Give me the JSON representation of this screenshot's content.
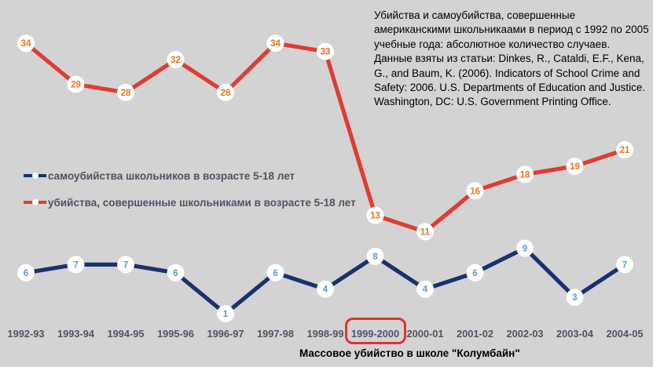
{
  "background": "#d3d3d3",
  "colors": {
    "axis_text": "#4d5562",
    "note_text": "#000000",
    "caption_text": "#000000",
    "highlight_box": "#e0352b",
    "marker_fill": "#ffffff"
  },
  "source_note": "Убийства и самоубийства, совершенные американскими школьникаами в период с 1992 по 2005 учебные года: абсолютное количество случаев. Данные взяты из статьи: Dinkes, R., Cataldi, E.F., Kena, G., and Baum, K. (2006). Indicators of School Crime and Safety: 2006. U.S. Departments of Education and Justice. Washington, DC: U.S. Government Printing Office.",
  "legend": [
    {
      "id": "suicides",
      "label": "самоубийства  школьников в возрасте 5-18 лет",
      "color": "#16336e"
    },
    {
      "id": "murders",
      "label": "убийства, совершенные школьниками в возрасте 5-18 лет",
      "color": "#e03c33"
    }
  ],
  "caption": "Массовое убийство в школе \"Колумбайн\"",
  "highlighted_category": "1999-2000",
  "chart_data": {
    "type": "line",
    "categories": [
      "1992-93",
      "1993-94",
      "1994-95",
      "1995-96",
      "1996-97",
      "1997-98",
      "1998-99",
      "1999-2000",
      "2000-01",
      "2001-02",
      "2002-03",
      "2003-04",
      "2004-05"
    ],
    "series": [
      {
        "id": "murders",
        "name": "убийства, совершенные школьниками в возрасте 5-18 лет",
        "values": [
          34,
          29,
          28,
          32,
          28,
          34,
          33,
          13,
          11,
          16,
          18,
          19,
          21
        ],
        "line_color": "#e03c33",
        "label_color": "#e4761f"
      },
      {
        "id": "suicides",
        "name": "самоубийства школьников в возрасте 5-18 лет",
        "values": [
          6,
          7,
          7,
          6,
          1,
          6,
          4,
          8,
          4,
          6,
          9,
          3,
          7
        ],
        "line_color": "#16336e",
        "label_color": "#5b9bd5"
      }
    ],
    "title": "",
    "xlabel": "",
    "ylabel": "",
    "ylim": [
      0,
      39
    ],
    "grid": false,
    "legend_position": "middle-left",
    "data_labels": "values shown inside white circular markers on every point",
    "annotation": "1999-2000 tick label outlined with red rounded box; caption below marks the Columbine school massacre"
  }
}
